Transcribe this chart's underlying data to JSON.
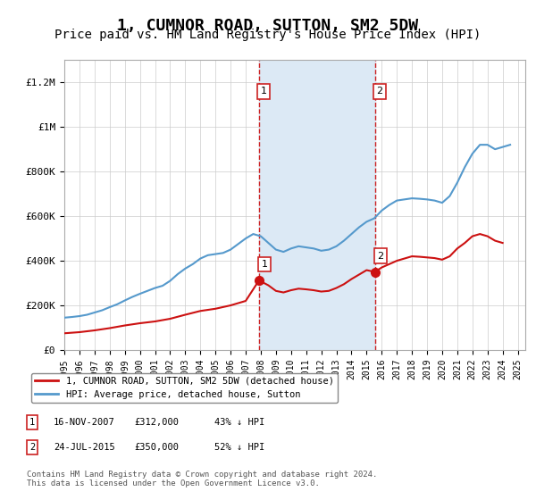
{
  "title": "1, CUMNOR ROAD, SUTTON, SM2 5DW",
  "subtitle": "Price paid vs. HM Land Registry's House Price Index (HPI)",
  "title_fontsize": 13,
  "subtitle_fontsize": 10,
  "ylabel_ticks": [
    "£0",
    "£200K",
    "£400K",
    "£600K",
    "£800K",
    "£1M",
    "£1.2M"
  ],
  "ytick_values": [
    0,
    200000,
    400000,
    600000,
    800000,
    1000000,
    1200000
  ],
  "ylim": [
    0,
    1300000
  ],
  "xlim_start": 1995.0,
  "xlim_end": 2025.5,
  "background_color": "#ffffff",
  "plot_bg_color": "#ffffff",
  "grid_color": "#cccccc",
  "sale1_x": 2007.88,
  "sale1_y": 312000,
  "sale1_label": "1",
  "sale2_x": 2015.55,
  "sale2_y": 350000,
  "sale2_label": "2",
  "shade_x1": 2007.88,
  "shade_x2": 2015.55,
  "shade_color": "#dce9f5",
  "vline_color": "#cc2222",
  "vline_style": "--",
  "red_line_color": "#cc1111",
  "blue_line_color": "#5599cc",
  "legend_label_red": "1, CUMNOR ROAD, SUTTON, SM2 5DW (detached house)",
  "legend_label_blue": "HPI: Average price, detached house, Sutton",
  "table_entries": [
    {
      "num": "1",
      "date": "16-NOV-2007",
      "price": "£312,000",
      "pct": "43% ↓ HPI"
    },
    {
      "num": "2",
      "date": "24-JUL-2015",
      "price": "£350,000",
      "pct": "52% ↓ HPI"
    }
  ],
  "footer": "Contains HM Land Registry data © Crown copyright and database right 2024.\nThis data is licensed under the Open Government Licence v3.0.",
  "hpi_years": [
    1995.0,
    1995.5,
    1996.0,
    1996.5,
    1997.0,
    1997.5,
    1998.0,
    1998.5,
    1999.0,
    1999.5,
    2000.0,
    2000.5,
    2001.0,
    2001.5,
    2002.0,
    2002.5,
    2003.0,
    2003.5,
    2004.0,
    2004.5,
    2005.0,
    2005.5,
    2006.0,
    2006.5,
    2007.0,
    2007.5,
    2008.0,
    2008.5,
    2009.0,
    2009.5,
    2010.0,
    2010.5,
    2011.0,
    2011.5,
    2012.0,
    2012.5,
    2013.0,
    2013.5,
    2014.0,
    2014.5,
    2015.0,
    2015.5,
    2016.0,
    2016.5,
    2017.0,
    2017.5,
    2018.0,
    2018.5,
    2019.0,
    2019.5,
    2020.0,
    2020.5,
    2021.0,
    2021.5,
    2022.0,
    2022.5,
    2023.0,
    2023.5,
    2024.0,
    2024.5
  ],
  "hpi_values": [
    145000,
    148000,
    152000,
    158000,
    168000,
    178000,
    192000,
    205000,
    222000,
    238000,
    252000,
    265000,
    278000,
    288000,
    310000,
    340000,
    365000,
    385000,
    410000,
    425000,
    430000,
    435000,
    450000,
    475000,
    500000,
    520000,
    510000,
    480000,
    450000,
    440000,
    455000,
    465000,
    460000,
    455000,
    445000,
    450000,
    465000,
    490000,
    520000,
    550000,
    575000,
    590000,
    625000,
    650000,
    670000,
    675000,
    680000,
    678000,
    675000,
    670000,
    660000,
    690000,
    750000,
    820000,
    880000,
    920000,
    920000,
    900000,
    910000,
    920000
  ],
  "red_years": [
    1995.0,
    1996.0,
    1997.0,
    1998.0,
    1999.0,
    2000.0,
    2001.0,
    2002.0,
    2003.0,
    2004.0,
    2005.0,
    2006.0,
    2007.0,
    2007.88,
    2008.5,
    2009.0,
    2009.5,
    2010.0,
    2010.5,
    2011.0,
    2011.5,
    2012.0,
    2012.5,
    2013.0,
    2013.5,
    2014.0,
    2014.5,
    2015.0,
    2015.55,
    2016.0,
    2016.5,
    2017.0,
    2017.5,
    2018.0,
    2018.5,
    2019.0,
    2019.5,
    2020.0,
    2020.5,
    2021.0,
    2021.5,
    2022.0,
    2022.5,
    2023.0,
    2023.5,
    2024.0
  ],
  "red_values": [
    75000,
    80000,
    88000,
    98000,
    110000,
    120000,
    128000,
    140000,
    158000,
    175000,
    185000,
    200000,
    220000,
    312000,
    290000,
    265000,
    258000,
    268000,
    275000,
    272000,
    268000,
    262000,
    265000,
    278000,
    295000,
    318000,
    338000,
    358000,
    350000,
    370000,
    385000,
    400000,
    410000,
    420000,
    418000,
    415000,
    412000,
    405000,
    420000,
    455000,
    480000,
    510000,
    520000,
    510000,
    490000,
    480000
  ]
}
